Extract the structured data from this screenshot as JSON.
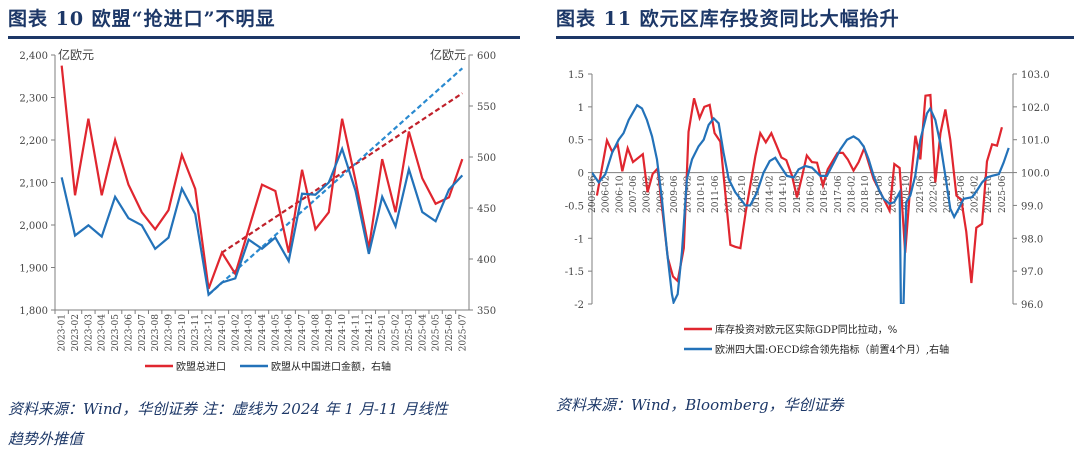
{
  "left": {
    "title": "图表 10  欧盟“抢进口”不明显",
    "source_line1": "资料来源：Wind，华创证券   注：虚线为 2024 年 1 月-11 月线性",
    "source_line2": "趋势外推值"
  },
  "right": {
    "title": "图表 11  欧元区库存投资同比大幅抬升",
    "source": "资料来源：Wind，Bloomberg，华创证券"
  },
  "chart_data": [
    {
      "type": "line",
      "ylabel": "亿欧元",
      "y2label": "亿欧元",
      "ylim": [
        1800,
        2400
      ],
      "y2lim": [
        350,
        600
      ],
      "yticks": [
        "1,800",
        "1,900",
        "2,000",
        "2,100",
        "2,200",
        "2,300",
        "2,400"
      ],
      "y2ticks": [
        "350",
        "400",
        "450",
        "500",
        "550",
        "600"
      ],
      "categories": [
        "2023-01",
        "2023-02",
        "2023-03",
        "2023-04",
        "2023-05",
        "2023-06",
        "2023-07",
        "2023-08",
        "2023-09",
        "2023-10",
        "2023-11",
        "2023-12",
        "2024-01",
        "2024-02",
        "2024-03",
        "2024-04",
        "2024-05",
        "2024-06",
        "2024-07",
        "2024-08",
        "2024-09",
        "2024-10",
        "2024-11",
        "2024-12",
        "2025-01",
        "2025-02",
        "2025-03",
        "2025-04",
        "2025-05",
        "2025-06",
        "2025-07"
      ],
      "series": [
        {
          "name": "欧盟总进口",
          "axis": "left",
          "color": "#e0262f",
          "values": [
            2375,
            2070,
            2250,
            2070,
            2200,
            2095,
            2030,
            1990,
            2035,
            2165,
            2085,
            1850,
            1935,
            1885,
            1990,
            2095,
            2080,
            1935,
            2130,
            1990,
            2030,
            2250,
            2105,
            1945,
            2155,
            2030,
            2220,
            2110,
            2050,
            2065,
            2155
          ]
        },
        {
          "name": "欧盟从中国进口金额，右轴",
          "axis": "right",
          "color": "#2372b9",
          "values": [
            480,
            423,
            433,
            422,
            461,
            440,
            433,
            410,
            421,
            469,
            444,
            365,
            377,
            381,
            419,
            410,
            421,
            398,
            464,
            463,
            475,
            508,
            467,
            405,
            461,
            432,
            488,
            446,
            437,
            468,
            482
          ]
        }
      ],
      "trendlines": [
        {
          "series": "欧盟总进口",
          "axis": "left",
          "color": "#c0202a",
          "from": [
            "2024-01",
            1935
          ],
          "to": [
            "2025-07",
            2310
          ]
        },
        {
          "series": "欧盟从中国进口金额，右轴",
          "axis": "right",
          "color": "#2a8ad0",
          "from": [
            "2023-12",
            365
          ],
          "to": [
            "2025-07",
            587
          ]
        }
      ]
    },
    {
      "type": "line",
      "ylim": [
        -2,
        1.5
      ],
      "y2lim": [
        96,
        103
      ],
      "xlim": [
        2005.42,
        2025.96
      ],
      "yticks": [
        "-2",
        "-1.5",
        "-1",
        "-0.5",
        "0",
        "0.5",
        "1",
        "1.5"
      ],
      "y2ticks": [
        "96.0",
        "97.0",
        "98.0",
        "99.0",
        "100.0",
        "101.0",
        "102.0",
        "103.0"
      ],
      "xticks": [
        "2005-06",
        "2006-02",
        "2006-10",
        "2007-06",
        "2008-02",
        "2008-10",
        "2009-06",
        "2010-02",
        "2010-10",
        "2011-06",
        "2012-02",
        "2012-10",
        "2013-06",
        "2014-02",
        "2014-10",
        "2015-06",
        "2016-02",
        "2016-10",
        "2017-06",
        "2018-02",
        "2018-10",
        "2019-06",
        "2020-02",
        "2020-10",
        "2021-06",
        "2022-02",
        "2022-10",
        "2023-06",
        "2024-02",
        "2024-10",
        "2025-06"
      ],
      "series": [
        {
          "name": "库存投资对欧元区实际GDP同比拉动，%",
          "axis": "left",
          "color": "#e0262f",
          "points": [
            [
              2005.66,
              -0.35
            ],
            [
              2006.15,
              0.49
            ],
            [
              2006.4,
              0.32
            ],
            [
              2006.67,
              0.43
            ],
            [
              2006.9,
              0.02
            ],
            [
              2007.16,
              0.37
            ],
            [
              2007.42,
              0.16
            ],
            [
              2007.9,
              0.28
            ],
            [
              2008.13,
              -0.3
            ],
            [
              2008.38,
              -0.02
            ],
            [
              2008.62,
              0.06
            ],
            [
              2009.12,
              -1.3
            ],
            [
              2009.37,
              -1.58
            ],
            [
              2009.6,
              -1.65
            ],
            [
              2009.9,
              -1.15
            ],
            [
              2010.13,
              0.62
            ],
            [
              2010.4,
              1.13
            ],
            [
              2010.67,
              0.83
            ],
            [
              2010.9,
              1.0
            ],
            [
              2011.16,
              1.03
            ],
            [
              2011.4,
              0.6
            ],
            [
              2011.68,
              0.47
            ],
            [
              2011.92,
              -0.3
            ],
            [
              2012.17,
              -1.1
            ],
            [
              2012.41,
              -1.13
            ],
            [
              2012.66,
              -1.15
            ],
            [
              2012.92,
              -0.6
            ],
            [
              2013.39,
              0.25
            ],
            [
              2013.63,
              0.6
            ],
            [
              2013.9,
              0.46
            ],
            [
              2014.17,
              0.6
            ],
            [
              2014.41,
              0.42
            ],
            [
              2014.66,
              0.23
            ],
            [
              2014.9,
              0.19
            ],
            [
              2015.18,
              -0.05
            ],
            [
              2015.42,
              -0.38
            ],
            [
              2015.66,
              -0.07
            ],
            [
              2015.9,
              0.26
            ],
            [
              2016.15,
              0.16
            ],
            [
              2016.4,
              0.15
            ],
            [
              2016.69,
              -0.2
            ],
            [
              2016.92,
              0.05
            ],
            [
              2017.4,
              0.3
            ],
            [
              2017.66,
              0.3
            ],
            [
              2017.9,
              0.2
            ],
            [
              2018.18,
              0.03
            ],
            [
              2018.43,
              0.16
            ],
            [
              2018.7,
              0.37
            ],
            [
              2019.16,
              -0.1
            ],
            [
              2019.65,
              -0.4
            ],
            [
              2019.94,
              -0.58
            ],
            [
              2020.17,
              0.13
            ],
            [
              2020.43,
              0.07
            ],
            [
              2020.7,
              -1.22
            ],
            [
              2020.95,
              -0.2
            ],
            [
              2021.2,
              0.56
            ],
            [
              2021.44,
              0.2
            ],
            [
              2021.69,
              1.17
            ],
            [
              2021.93,
              1.18
            ],
            [
              2022.17,
              -0.15
            ],
            [
              2022.42,
              0.6
            ],
            [
              2022.66,
              0.96
            ],
            [
              2022.9,
              0.5
            ],
            [
              2023.2,
              -0.35
            ],
            [
              2023.44,
              -0.42
            ],
            [
              2023.68,
              -0.9
            ],
            [
              2023.93,
              -1.68
            ],
            [
              2024.17,
              -0.84
            ],
            [
              2024.45,
              -0.78
            ],
            [
              2024.69,
              0.17
            ],
            [
              2024.94,
              0.43
            ],
            [
              2025.18,
              0.41
            ],
            [
              2025.42,
              0.69
            ]
          ]
        },
        {
          "name": "欧洲四大国:OECD综合领先指标（前置4个月）,右轴",
          "axis": "right",
          "color": "#2372b9",
          "points": [
            [
              2005.42,
              100.0
            ],
            [
              2005.75,
              99.7
            ],
            [
              2006.07,
              99.95
            ],
            [
              2006.4,
              100.6
            ],
            [
              2006.72,
              101.0
            ],
            [
              2006.96,
              101.2
            ],
            [
              2007.21,
              101.6
            ],
            [
              2007.62,
              102.05
            ],
            [
              2007.86,
              101.95
            ],
            [
              2008.1,
              101.6
            ],
            [
              2008.35,
              101.1
            ],
            [
              2008.59,
              100.4
            ],
            [
              2008.83,
              99.2
            ],
            [
              2009.08,
              97.6
            ],
            [
              2009.32,
              96.3
            ],
            [
              2009.4,
              96.05
            ],
            [
              2009.6,
              96.3
            ],
            [
              2009.81,
              97.6
            ],
            [
              2010.05,
              99.8
            ],
            [
              2010.3,
              100.4
            ],
            [
              2010.62,
              100.8
            ],
            [
              2010.87,
              101.0
            ],
            [
              2011.11,
              101.45
            ],
            [
              2011.36,
              101.65
            ],
            [
              2011.6,
              101.5
            ],
            [
              2011.84,
              100.6
            ],
            [
              2012.09,
              99.8
            ],
            [
              2012.41,
              99.4
            ],
            [
              2012.66,
              99.2
            ],
            [
              2012.9,
              99.0
            ],
            [
              2013.14,
              99.0
            ],
            [
              2013.47,
              99.4
            ],
            [
              2013.79,
              100.0
            ],
            [
              2014.09,
              100.35
            ],
            [
              2014.36,
              100.45
            ],
            [
              2014.61,
              100.2
            ],
            [
              2014.93,
              99.9
            ],
            [
              2015.26,
              99.85
            ],
            [
              2015.5,
              100.1
            ],
            [
              2015.83,
              100.2
            ],
            [
              2016.15,
              100.15
            ],
            [
              2016.56,
              99.9
            ],
            [
              2016.88,
              99.9
            ],
            [
              2017.21,
              100.3
            ],
            [
              2017.53,
              100.7
            ],
            [
              2017.86,
              101.0
            ],
            [
              2018.18,
              101.1
            ],
            [
              2018.43,
              101.0
            ],
            [
              2018.67,
              100.8
            ],
            [
              2018.92,
              100.4
            ],
            [
              2019.16,
              99.9
            ],
            [
              2019.4,
              99.5
            ],
            [
              2019.65,
              99.2
            ],
            [
              2019.94,
              99.05
            ],
            [
              2020.17,
              99.1
            ],
            [
              2020.43,
              99.4
            ],
            [
              2020.49,
              96.0
            ],
            [
              2020.62,
              96.0
            ],
            [
              2020.75,
              99.1
            ],
            [
              2020.95,
              99.3
            ],
            [
              2021.19,
              99.9
            ],
            [
              2021.44,
              101.0
            ],
            [
              2021.76,
              101.8
            ],
            [
              2021.92,
              101.95
            ],
            [
              2022.17,
              101.6
            ],
            [
              2022.41,
              100.9
            ],
            [
              2022.66,
              99.9
            ],
            [
              2022.9,
              98.9
            ],
            [
              2023.09,
              98.65
            ],
            [
              2023.31,
              98.9
            ],
            [
              2023.55,
              99.2
            ],
            [
              2023.96,
              99.25
            ],
            [
              2024.2,
              99.45
            ],
            [
              2024.45,
              99.7
            ],
            [
              2024.69,
              99.85
            ],
            [
              2024.94,
              99.9
            ],
            [
              2025.27,
              99.95
            ],
            [
              2025.5,
              100.3
            ],
            [
              2025.75,
              100.75
            ]
          ]
        }
      ]
    }
  ]
}
